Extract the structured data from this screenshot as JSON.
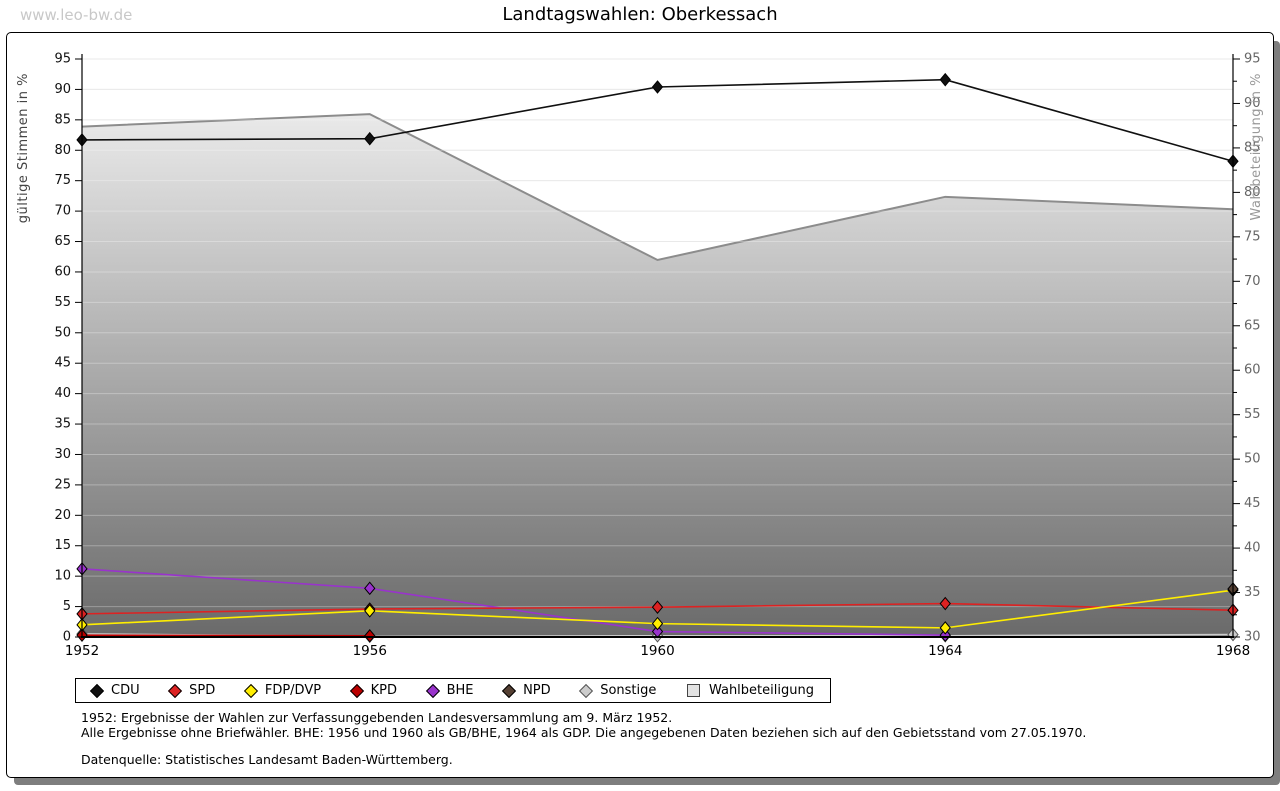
{
  "page": {
    "watermark": "www.leo-bw.de",
    "title": "Landtagswahlen: Oberkessach"
  },
  "chart_data": {
    "type": "line",
    "title": "Landtagswahlen: Oberkessach",
    "categories": [
      1952,
      1956,
      1960,
      1964,
      1968
    ],
    "left_axis": {
      "label": "gültige Stimmen in %",
      "min": 0,
      "max": 95,
      "tick_step": 5
    },
    "right_axis": {
      "label": "Wahlbeteiligung in %",
      "min": 30,
      "max": 95,
      "tick_step": 5
    },
    "grid": true,
    "legend_position": "bottom",
    "series": [
      {
        "name": "CDU",
        "axis": "left",
        "marker": "diamond",
        "color": "#101010",
        "z": 7,
        "values": [
          81.7,
          81.9,
          90.4,
          91.6,
          78.2
        ]
      },
      {
        "name": "SPD",
        "axis": "left",
        "marker": "diamond",
        "color": "#dd2222",
        "z": 4,
        "values": [
          3.8,
          4.6,
          4.9,
          5.5,
          4.4
        ]
      },
      {
        "name": "FDP/DVP",
        "axis": "left",
        "marker": "diamond",
        "color": "#ffee00",
        "z": 5,
        "values": [
          2.0,
          4.3,
          2.2,
          1.5,
          7.7
        ]
      },
      {
        "name": "KPD",
        "axis": "left",
        "marker": "diamond",
        "color": "#bb0000",
        "z": 2,
        "values": [
          0.3,
          0.2,
          null,
          null,
          null
        ]
      },
      {
        "name": "BHE",
        "axis": "left",
        "marker": "diamond",
        "color": "#9933cc",
        "z": 3,
        "values": [
          11.2,
          8.0,
          0.9,
          0.3,
          null
        ]
      },
      {
        "name": "NPD",
        "axis": "left",
        "marker": "diamond",
        "color": "#554033",
        "z": 6,
        "values": [
          null,
          null,
          null,
          null,
          7.9
        ]
      },
      {
        "name": "Sonstige",
        "axis": "left",
        "marker": "diamond",
        "color": "#cccccc",
        "z": 1,
        "values": [
          0.5,
          0.1,
          0.2,
          0.2,
          0.4
        ]
      },
      {
        "name": "Wahlbeteiligung",
        "axis": "right",
        "marker": "none",
        "type": "area",
        "color": "#8c8c8c",
        "z": 0,
        "values": [
          87.4,
          88.8,
          72.4,
          79.5,
          78.1
        ]
      }
    ]
  },
  "footer": {
    "line1": "1952: Ergebnisse der Wahlen zur Verfassunggebenden Landesversammlung am 9. März 1952.",
    "line2": "Alle Ergebnisse ohne Briefwähler. BHE: 1956 und 1960 als GB/BHE, 1964 als GDP. Die angegebenen Daten beziehen sich auf den Gebietsstand vom 27.05.1970.",
    "source": "Datenquelle: Statistisches Landesamt Baden-Württemberg."
  },
  "colors": {
    "grid": "#e0e0e0",
    "area_gradient_top": "#f7f7f7",
    "area_gradient_bottom": "#6a6a6a",
    "right_axis_text": "#666666",
    "shadow": "#7e7e7e"
  }
}
